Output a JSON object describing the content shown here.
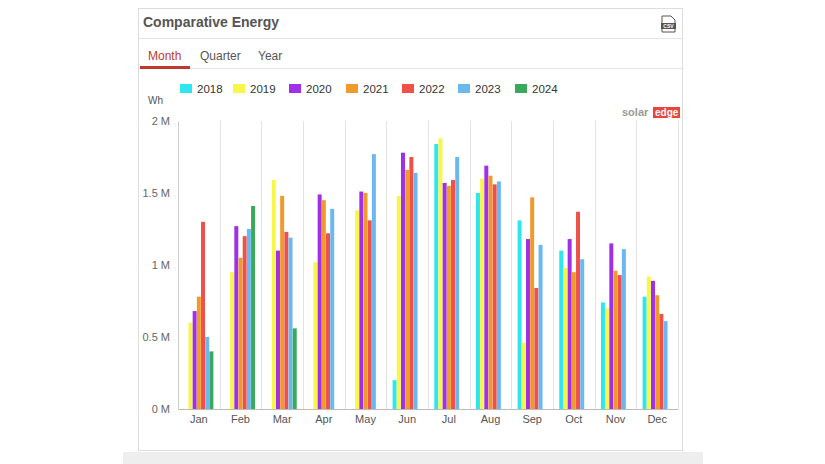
{
  "chart_data": {
    "type": "bar",
    "title": "Comparative Energy",
    "tabs": [
      "Month",
      "Quarter",
      "Year"
    ],
    "csv_label": "CSV",
    "logo": [
      "solar",
      "edge"
    ],
    "y_label": "Wh",
    "categories": [
      "Jan",
      "Feb",
      "Mar",
      "Apr",
      "May",
      "Jun",
      "Jul",
      "Aug",
      "Sep",
      "Oct",
      "Nov",
      "Dec"
    ],
    "series": [
      {
        "name": "2018",
        "color": "#2ee6f0",
        "values": [
          null,
          null,
          null,
          null,
          null,
          200000,
          1840000,
          1500000,
          1310000,
          1100000,
          740000,
          780000
        ]
      },
      {
        "name": "2019",
        "color": "#f7f74a",
        "values": [
          600000,
          950000,
          1590000,
          1020000,
          1380000,
          1480000,
          1880000,
          1600000,
          460000,
          980000,
          700000,
          920000
        ]
      },
      {
        "name": "2020",
        "color": "#a030e8",
        "values": [
          680000,
          1270000,
          1100000,
          1490000,
          1510000,
          1780000,
          1570000,
          1690000,
          1180000,
          1180000,
          1150000,
          890000
        ]
      },
      {
        "name": "2021",
        "color": "#f09a2a",
        "values": [
          780000,
          1050000,
          1480000,
          1450000,
          1500000,
          1660000,
          1550000,
          1620000,
          1470000,
          950000,
          960000,
          790000
        ]
      },
      {
        "name": "2022",
        "color": "#f0504a",
        "values": [
          1300000,
          1200000,
          1230000,
          1220000,
          1310000,
          1750000,
          1590000,
          1560000,
          840000,
          1370000,
          930000,
          660000
        ]
      },
      {
        "name": "2023",
        "color": "#6ab8f0",
        "values": [
          500000,
          1250000,
          1190000,
          1390000,
          1770000,
          1640000,
          1750000,
          1580000,
          1140000,
          1040000,
          1110000,
          610000
        ]
      },
      {
        "name": "2024",
        "color": "#3aaa5a",
        "values": [
          400000,
          1410000,
          560000,
          null,
          null,
          null,
          null,
          null,
          null,
          null,
          null,
          null
        ]
      }
    ],
    "ylim": [
      0,
      2000000
    ],
    "yticks": [
      {
        "value": 0,
        "label": "0 M"
      },
      {
        "value": 500000,
        "label": "0.5 M"
      },
      {
        "value": 1000000,
        "label": "1 M"
      },
      {
        "value": 1500000,
        "label": "1.5 M"
      },
      {
        "value": 2000000,
        "label": "2 M"
      }
    ],
    "grid": true,
    "legend": "top"
  }
}
